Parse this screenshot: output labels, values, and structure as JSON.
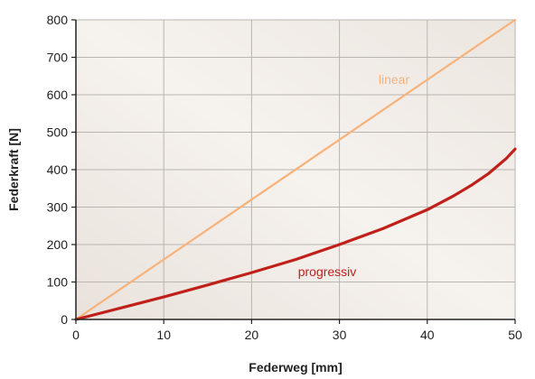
{
  "chart_data": {
    "type": "line",
    "xlabel": "Federweg [mm]",
    "ylabel": "Federkraft [N]",
    "xlim": [
      0,
      50
    ],
    "ylim": [
      0,
      800
    ],
    "x_ticks": [
      0,
      10,
      20,
      30,
      40,
      50
    ],
    "y_ticks": [
      0,
      100,
      200,
      300,
      400,
      500,
      600,
      700,
      800
    ],
    "grid": true,
    "series": [
      {
        "name": "linear",
        "color": "#f7b27a",
        "x": [
          0,
          10,
          20,
          30,
          40,
          50
        ],
        "y": [
          0,
          160,
          320,
          480,
          640,
          800
        ]
      },
      {
        "name": "progressiv",
        "color": "#c0201a",
        "x": [
          0,
          5,
          10,
          15,
          20,
          25,
          30,
          35,
          40,
          43,
          45,
          47,
          48,
          49,
          50
        ],
        "y": [
          0,
          30,
          60,
          92,
          125,
          160,
          200,
          243,
          293,
          330,
          358,
          390,
          410,
          430,
          455
        ]
      }
    ]
  }
}
